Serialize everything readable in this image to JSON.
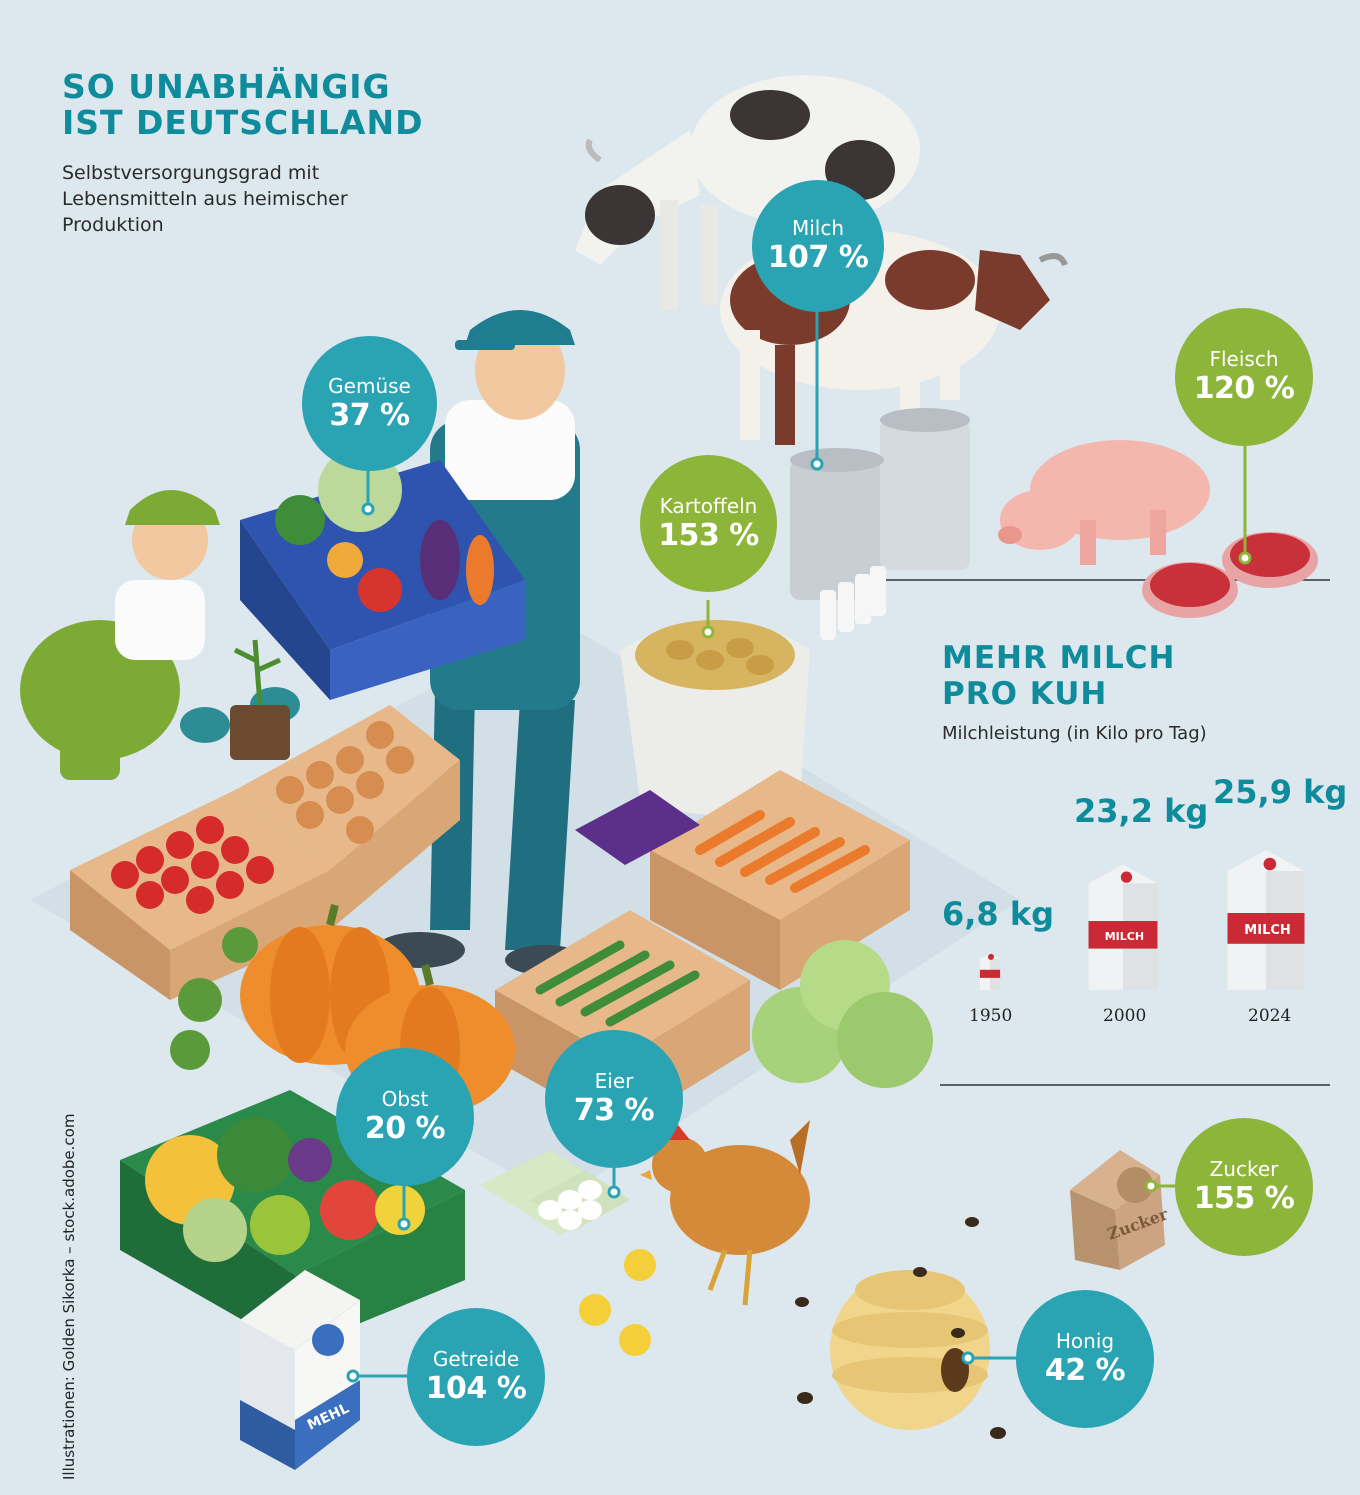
{
  "header": {
    "title_line1": "SO UNABHÄNGIG",
    "title_line2": "IST DEUTSCHLAND",
    "subtitle_line1": "Selbstversorgungsgrad mit",
    "subtitle_line2": "Lebensmitteln aus heimischer",
    "subtitle_line3": "Produktion"
  },
  "items": {
    "milch": {
      "label": "Milch",
      "value": "107 %"
    },
    "fleisch": {
      "label": "Fleisch",
      "value": "120 %"
    },
    "gemuese": {
      "label": "Gemüse",
      "value": "37 %"
    },
    "kartoffeln": {
      "label": "Kartoffeln",
      "value": "153 %"
    },
    "obst": {
      "label": "Obst",
      "value": "20 %"
    },
    "eier": {
      "label": "Eier",
      "value": "73 %"
    },
    "zucker": {
      "label": "Zucker",
      "value": "155 %"
    },
    "getreide": {
      "label": "Getreide",
      "value": "104 %"
    },
    "honig": {
      "label": "Honig",
      "value": "42 %"
    }
  },
  "milk": {
    "title_line1": "MEHR MILCH",
    "title_line2": "PRO KUH",
    "subtitle": "Milchleistung (in Kilo pro Tag)",
    "entries": [
      {
        "year": "1950",
        "value": "6,8 kg"
      },
      {
        "year": "2000",
        "value": "23,2 kg"
      },
      {
        "year": "2024",
        "value": "25,9 kg"
      }
    ],
    "carton_label": "MILCH"
  },
  "labels": {
    "flour_bag": "MEHL",
    "sugar_bag": "Zucker"
  },
  "credit": "Illustrationen: Golden Sikorka – stock.adobe.com",
  "colors": {
    "teal": "#2aa3b3",
    "green": "#8db53a",
    "title": "#0f8c9b",
    "background": "#dce7ee"
  }
}
